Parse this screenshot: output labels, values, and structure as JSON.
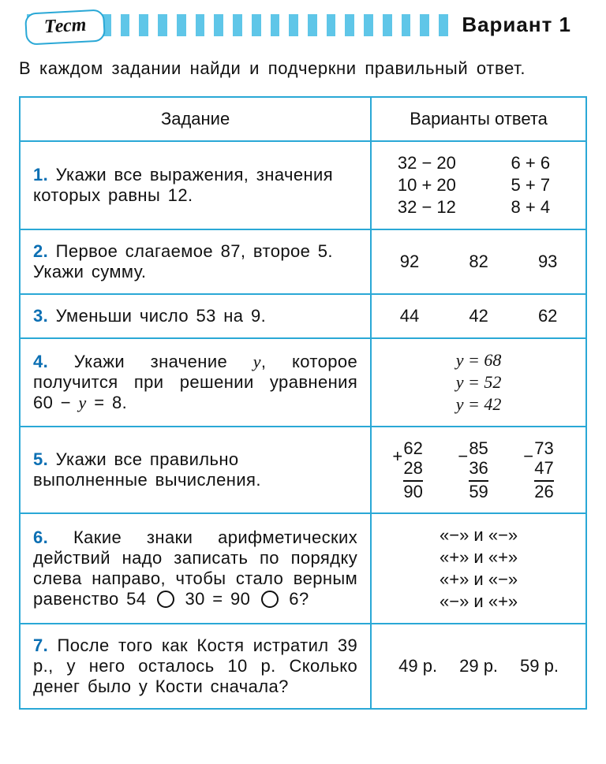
{
  "colors": {
    "accent": "#2aa8d6",
    "stripe": "#5fc6e8",
    "number": "#0b6fb3",
    "text": "#111111",
    "background": "#ffffff"
  },
  "header": {
    "test_label": "Тест",
    "variant_label": "Вариант 1",
    "stripe_count": 30
  },
  "instruction": "В каждом задании найди и подчеркни правильный ответ.",
  "table": {
    "col_task": "Задание",
    "col_answers": "Варианты ответа"
  },
  "tasks": {
    "t1": {
      "num": "1.",
      "text": "Укажи все выражения, значения которых равны 12.",
      "answers": [
        "32 − 20",
        "6 + 6",
        "10 + 20",
        "5 + 7",
        "32 − 12",
        "8 + 4"
      ]
    },
    "t2": {
      "num": "2.",
      "text": "Первое слагаемое 87, второе 5. Укажи сумму.",
      "answers": [
        "92",
        "82",
        "93"
      ]
    },
    "t3": {
      "num": "3.",
      "text": "Уменьши число 53 на 9.",
      "answers": [
        "44",
        "42",
        "62"
      ]
    },
    "t4": {
      "num": "4.",
      "text_a": "Укажи значение ",
      "var": "y",
      "text_b": ", которое получится при решении уравнения 60 − ",
      "var2": "y",
      "text_c": " = 8.",
      "answers": [
        "y = 68",
        "y = 52",
        "y = 42"
      ]
    },
    "t5": {
      "num": "5.",
      "text": "Укажи все правильно выполненные вычисления.",
      "calcs": [
        {
          "op": "+",
          "a": "62",
          "b": "28",
          "r": "90"
        },
        {
          "op": "−",
          "a": "85",
          "b": "36",
          "r": "59"
        },
        {
          "op": "−",
          "a": "73",
          "b": "47",
          "r": "26"
        }
      ]
    },
    "t6": {
      "num": "6.",
      "text_a": "Какие знаки арифметических действий надо записать по порядку слева направо, чтобы стало верным равенство 54 ",
      "text_b": " 30 = 90 ",
      "text_c": " 6?",
      "answers": [
        "«−»  и  «−»",
        "«+»  и  «+»",
        "«+»  и  «−»",
        "«−»  и  «+»"
      ]
    },
    "t7": {
      "num": "7.",
      "text": "После того как Костя истратил 39 р., у него осталось 10 р. Сколько денег было у Кости сначала?",
      "answers": [
        "49 р.",
        "29 р.",
        "59 р."
      ]
    }
  }
}
